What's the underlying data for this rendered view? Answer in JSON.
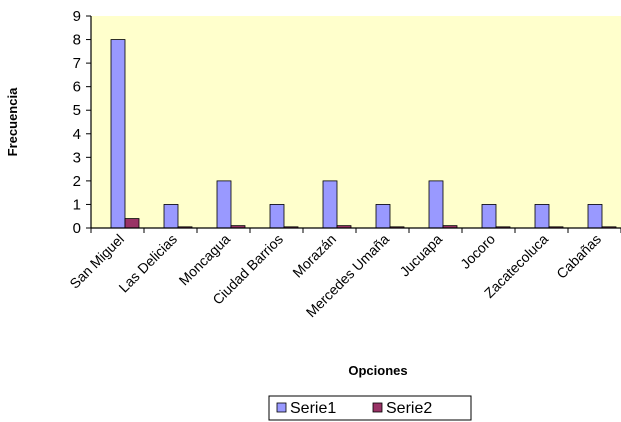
{
  "chart_data": {
    "type": "bar",
    "categories": [
      "San Miguel",
      "Las Delicias",
      "Moncagua",
      "Ciudad Barrios",
      "Morazán",
      "Mercedes Umaña",
      "Jucuapa",
      "Jocoro",
      "Zacatecoluca",
      "Cabañas"
    ],
    "series": [
      {
        "name": "Serie1",
        "values": [
          8,
          1,
          2,
          1,
          2,
          1,
          2,
          1,
          1,
          1
        ],
        "color": "#9999ff"
      },
      {
        "name": "Serie2",
        "values": [
          0.4,
          0.05,
          0.1,
          0.05,
          0.1,
          0.05,
          0.1,
          0.05,
          0.05,
          0.05
        ],
        "color": "#993366"
      }
    ],
    "xlabel": "Opciones",
    "ylabel": "Frecuencia",
    "ylim": [
      0,
      9
    ],
    "yticks": [
      0,
      1,
      2,
      3,
      4,
      5,
      6,
      7,
      8,
      9
    ],
    "grid": false,
    "plot_background": "#ffffcc",
    "legend_position": "bottom"
  }
}
